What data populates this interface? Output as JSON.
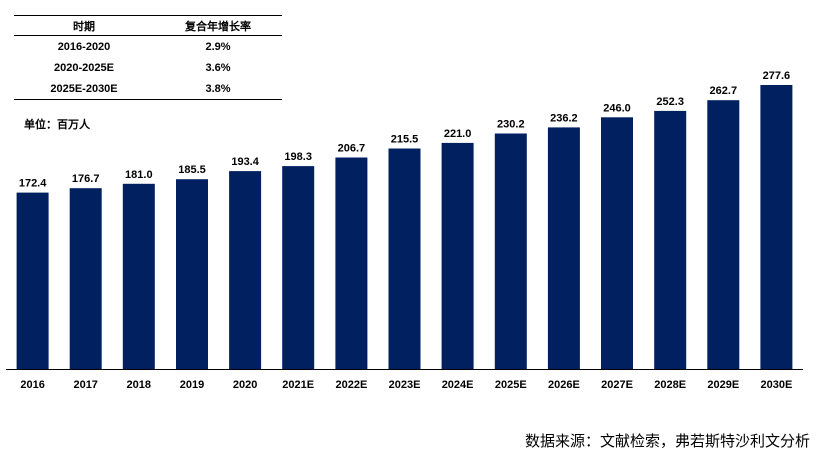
{
  "cagr_table": {
    "headers": [
      "时期",
      "复合年增长率"
    ],
    "rows": [
      [
        "2016-2020",
        "2.9%"
      ],
      [
        "2020-2025E",
        "3.6%"
      ],
      [
        "2025E-2030E",
        "3.8%"
      ]
    ]
  },
  "unit_label": "单位：百万人",
  "source": "数据来源：文献检索，弗若斯特沙利文分析",
  "colors": {
    "bar": "#002060",
    "axis": "#000000"
  },
  "chart_data": {
    "type": "bar",
    "categories": [
      "2016",
      "2017",
      "2018",
      "2019",
      "2020",
      "2021E",
      "2022E",
      "2023E",
      "2024E",
      "2025E",
      "2026E",
      "2027E",
      "2028E",
      "2029E",
      "2030E"
    ],
    "values": [
      172.4,
      176.7,
      181.0,
      185.5,
      193.4,
      198.3,
      206.7,
      215.5,
      221.0,
      230.2,
      236.2,
      246.0,
      252.3,
      262.7,
      277.6
    ],
    "value_labels": [
      "172.4",
      "176.7",
      "181.0",
      "185.5",
      "193.4",
      "198.3",
      "206.7",
      "215.5",
      "221.0",
      "230.2",
      "236.2",
      "246.0",
      "252.3",
      "262.7",
      "277.6"
    ],
    "title": "",
    "xlabel": "",
    "ylabel": "",
    "ylim": [
      0,
      277.6
    ],
    "grid": false,
    "legend": "none"
  }
}
